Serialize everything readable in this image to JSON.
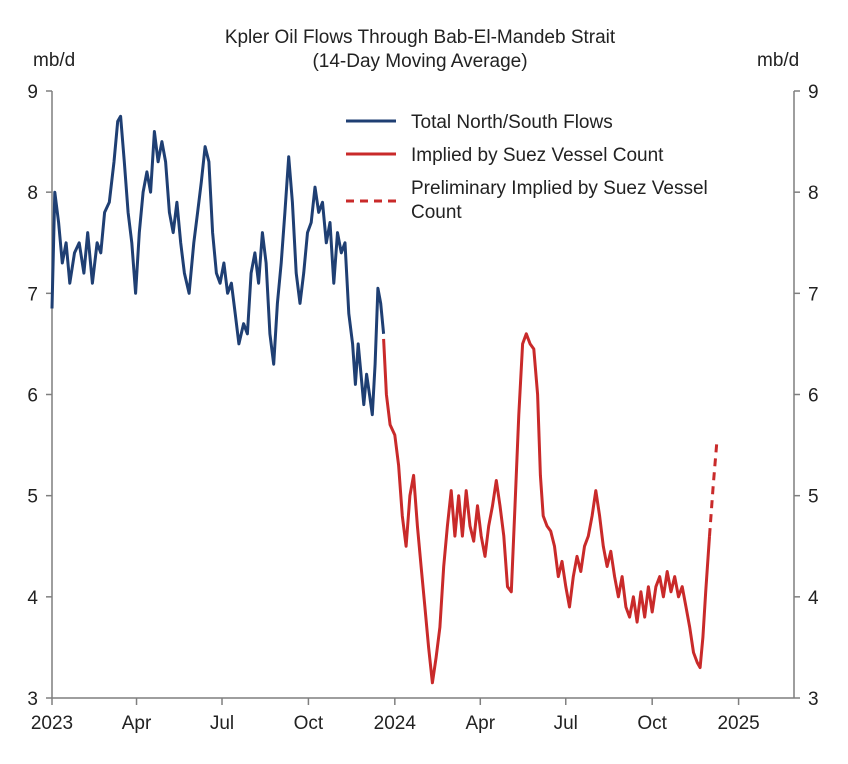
{
  "chart_data": {
    "type": "line",
    "title": "Kpler Oil Flows Through Bab-El-Mandeb Strait",
    "subtitle": "(14-Day Moving Average)",
    "ylabel_left": "mb/d",
    "ylabel_right": "mb/d",
    "ylim": [
      3,
      9
    ],
    "yticks": [
      3,
      4,
      5,
      6,
      7,
      8,
      9
    ],
    "xlim": [
      "2023-01-01",
      "2025-03-01"
    ],
    "xticks": [
      {
        "date": "2023-01-01",
        "label": "2023"
      },
      {
        "date": "2023-04-01",
        "label": "Apr"
      },
      {
        "date": "2023-07-01",
        "label": "Jul"
      },
      {
        "date": "2023-10-01",
        "label": "Oct"
      },
      {
        "date": "2024-01-01",
        "label": "2024"
      },
      {
        "date": "2024-04-01",
        "label": "Apr"
      },
      {
        "date": "2024-07-01",
        "label": "Jul"
      },
      {
        "date": "2024-10-01",
        "label": "Oct"
      },
      {
        "date": "2025-01-01",
        "label": "2025"
      }
    ],
    "legend_position": "top-right",
    "series": [
      {
        "name": "Total North/South Flows",
        "color": "#1f3f73",
        "style": "solid",
        "points": [
          [
            "2023-01-01",
            6.85
          ],
          [
            "2023-01-04",
            8.0
          ],
          [
            "2023-01-08",
            7.7
          ],
          [
            "2023-01-12",
            7.3
          ],
          [
            "2023-01-16",
            7.5
          ],
          [
            "2023-01-20",
            7.1
          ],
          [
            "2023-01-25",
            7.4
          ],
          [
            "2023-01-30",
            7.5
          ],
          [
            "2023-02-04",
            7.2
          ],
          [
            "2023-02-08",
            7.6
          ],
          [
            "2023-02-13",
            7.1
          ],
          [
            "2023-02-18",
            7.5
          ],
          [
            "2023-02-22",
            7.4
          ],
          [
            "2023-02-26",
            7.8
          ],
          [
            "2023-03-03",
            7.9
          ],
          [
            "2023-03-08",
            8.3
          ],
          [
            "2023-03-12",
            8.7
          ],
          [
            "2023-03-15",
            8.75
          ],
          [
            "2023-03-19",
            8.3
          ],
          [
            "2023-03-23",
            7.8
          ],
          [
            "2023-03-27",
            7.5
          ],
          [
            "2023-03-31",
            7.0
          ],
          [
            "2023-04-04",
            7.6
          ],
          [
            "2023-04-08",
            8.0
          ],
          [
            "2023-04-12",
            8.2
          ],
          [
            "2023-04-16",
            8.0
          ],
          [
            "2023-04-20",
            8.6
          ],
          [
            "2023-04-24",
            8.3
          ],
          [
            "2023-04-28",
            8.5
          ],
          [
            "2023-05-02",
            8.3
          ],
          [
            "2023-05-06",
            7.8
          ],
          [
            "2023-05-10",
            7.6
          ],
          [
            "2023-05-14",
            7.9
          ],
          [
            "2023-05-18",
            7.5
          ],
          [
            "2023-05-22",
            7.2
          ],
          [
            "2023-05-27",
            7.0
          ],
          [
            "2023-06-01",
            7.5
          ],
          [
            "2023-06-05",
            7.8
          ],
          [
            "2023-06-09",
            8.1
          ],
          [
            "2023-06-13",
            8.45
          ],
          [
            "2023-06-17",
            8.3
          ],
          [
            "2023-06-21",
            7.6
          ],
          [
            "2023-06-25",
            7.2
          ],
          [
            "2023-06-29",
            7.1
          ],
          [
            "2023-07-03",
            7.3
          ],
          [
            "2023-07-07",
            7.0
          ],
          [
            "2023-07-11",
            7.1
          ],
          [
            "2023-07-15",
            6.8
          ],
          [
            "2023-07-19",
            6.5
          ],
          [
            "2023-07-24",
            6.7
          ],
          [
            "2023-07-28",
            6.6
          ],
          [
            "2023-08-01",
            7.2
          ],
          [
            "2023-08-05",
            7.4
          ],
          [
            "2023-08-09",
            7.1
          ],
          [
            "2023-08-13",
            7.6
          ],
          [
            "2023-08-17",
            7.3
          ],
          [
            "2023-08-21",
            6.6
          ],
          [
            "2023-08-25",
            6.3
          ],
          [
            "2023-08-29",
            6.9
          ],
          [
            "2023-09-02",
            7.3
          ],
          [
            "2023-09-06",
            7.8
          ],
          [
            "2023-09-10",
            8.35
          ],
          [
            "2023-09-14",
            7.9
          ],
          [
            "2023-09-18",
            7.2
          ],
          [
            "2023-09-22",
            6.9
          ],
          [
            "2023-09-26",
            7.2
          ],
          [
            "2023-09-30",
            7.6
          ],
          [
            "2023-10-04",
            7.7
          ],
          [
            "2023-10-08",
            8.05
          ],
          [
            "2023-10-12",
            7.8
          ],
          [
            "2023-10-16",
            7.9
          ],
          [
            "2023-10-20",
            7.5
          ],
          [
            "2023-10-24",
            7.7
          ],
          [
            "2023-10-28",
            7.1
          ],
          [
            "2023-11-01",
            7.6
          ],
          [
            "2023-11-05",
            7.4
          ],
          [
            "2023-11-09",
            7.5
          ],
          [
            "2023-11-13",
            6.8
          ],
          [
            "2023-11-17",
            6.5
          ],
          [
            "2023-11-20",
            6.1
          ],
          [
            "2023-11-23",
            6.5
          ],
          [
            "2023-11-26",
            6.2
          ],
          [
            "2023-11-29",
            5.9
          ],
          [
            "2023-12-02",
            6.2
          ],
          [
            "2023-12-05",
            6.0
          ],
          [
            "2023-12-08",
            5.8
          ],
          [
            "2023-12-11",
            6.3
          ],
          [
            "2023-12-14",
            7.05
          ],
          [
            "2023-12-17",
            6.9
          ],
          [
            "2023-12-20",
            6.6
          ]
        ]
      },
      {
        "name": "Implied by Suez Vessel Count",
        "color": "#c92a2a",
        "style": "solid",
        "points": [
          [
            "2023-12-20",
            6.55
          ],
          [
            "2023-12-23",
            6.0
          ],
          [
            "2023-12-27",
            5.7
          ],
          [
            "2024-01-01",
            5.6
          ],
          [
            "2024-01-05",
            5.3
          ],
          [
            "2024-01-09",
            4.8
          ],
          [
            "2024-01-13",
            4.5
          ],
          [
            "2024-01-17",
            5.0
          ],
          [
            "2024-01-21",
            5.2
          ],
          [
            "2024-01-25",
            4.7
          ],
          [
            "2024-01-29",
            4.3
          ],
          [
            "2024-02-02",
            3.9
          ],
          [
            "2024-02-06",
            3.5
          ],
          [
            "2024-02-10",
            3.15
          ],
          [
            "2024-02-14",
            3.4
          ],
          [
            "2024-02-18",
            3.7
          ],
          [
            "2024-02-22",
            4.3
          ],
          [
            "2024-02-26",
            4.7
          ],
          [
            "2024-03-01",
            5.05
          ],
          [
            "2024-03-05",
            4.6
          ],
          [
            "2024-03-09",
            5.0
          ],
          [
            "2024-03-13",
            4.6
          ],
          [
            "2024-03-17",
            5.05
          ],
          [
            "2024-03-21",
            4.7
          ],
          [
            "2024-03-25",
            4.55
          ],
          [
            "2024-03-29",
            4.9
          ],
          [
            "2024-04-02",
            4.6
          ],
          [
            "2024-04-06",
            4.4
          ],
          [
            "2024-04-10",
            4.7
          ],
          [
            "2024-04-14",
            4.9
          ],
          [
            "2024-04-18",
            5.15
          ],
          [
            "2024-04-22",
            4.9
          ],
          [
            "2024-04-26",
            4.6
          ],
          [
            "2024-04-30",
            4.1
          ],
          [
            "2024-05-04",
            4.05
          ],
          [
            "2024-05-08",
            4.9
          ],
          [
            "2024-05-12",
            5.8
          ],
          [
            "2024-05-16",
            6.5
          ],
          [
            "2024-05-20",
            6.6
          ],
          [
            "2024-05-24",
            6.5
          ],
          [
            "2024-05-28",
            6.45
          ],
          [
            "2024-06-01",
            6.0
          ],
          [
            "2024-06-04",
            5.2
          ],
          [
            "2024-06-07",
            4.8
          ],
          [
            "2024-06-11",
            4.7
          ],
          [
            "2024-06-15",
            4.65
          ],
          [
            "2024-06-19",
            4.5
          ],
          [
            "2024-06-23",
            4.2
          ],
          [
            "2024-06-27",
            4.35
          ],
          [
            "2024-07-01",
            4.1
          ],
          [
            "2024-07-05",
            3.9
          ],
          [
            "2024-07-09",
            4.2
          ],
          [
            "2024-07-13",
            4.4
          ],
          [
            "2024-07-17",
            4.25
          ],
          [
            "2024-07-21",
            4.5
          ],
          [
            "2024-07-25",
            4.6
          ],
          [
            "2024-07-29",
            4.8
          ],
          [
            "2024-08-02",
            5.05
          ],
          [
            "2024-08-06",
            4.8
          ],
          [
            "2024-08-10",
            4.5
          ],
          [
            "2024-08-14",
            4.3
          ],
          [
            "2024-08-18",
            4.45
          ],
          [
            "2024-08-22",
            4.2
          ],
          [
            "2024-08-26",
            4.0
          ],
          [
            "2024-08-30",
            4.2
          ],
          [
            "2024-09-03",
            3.9
          ],
          [
            "2024-09-07",
            3.8
          ],
          [
            "2024-09-11",
            4.0
          ],
          [
            "2024-09-15",
            3.75
          ],
          [
            "2024-09-19",
            4.05
          ],
          [
            "2024-09-23",
            3.8
          ],
          [
            "2024-09-27",
            4.1
          ],
          [
            "2024-10-01",
            3.85
          ],
          [
            "2024-10-05",
            4.1
          ],
          [
            "2024-10-09",
            4.2
          ],
          [
            "2024-10-13",
            4.0
          ],
          [
            "2024-10-17",
            4.25
          ],
          [
            "2024-10-21",
            4.05
          ],
          [
            "2024-10-25",
            4.2
          ],
          [
            "2024-10-29",
            4.0
          ],
          [
            "2024-11-02",
            4.1
          ],
          [
            "2024-11-06",
            3.9
          ],
          [
            "2024-11-10",
            3.7
          ],
          [
            "2024-11-14",
            3.45
          ],
          [
            "2024-11-18",
            3.35
          ],
          [
            "2024-11-21",
            3.3
          ],
          [
            "2024-11-24",
            3.6
          ],
          [
            "2024-11-27",
            4.05
          ],
          [
            "2024-12-01",
            4.6
          ]
        ]
      },
      {
        "name": "Preliminary Implied by Suez Vessel Count",
        "color": "#c92a2a",
        "style": "dashed",
        "points": [
          [
            "2024-12-01",
            4.6
          ],
          [
            "2024-12-05",
            5.1
          ],
          [
            "2024-12-09",
            5.55
          ]
        ]
      }
    ]
  }
}
